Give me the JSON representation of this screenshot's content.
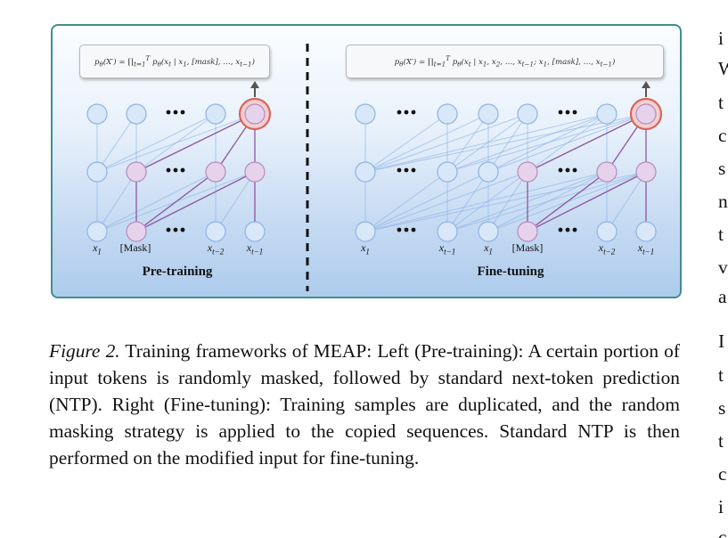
{
  "figure": {
    "left_formula": "pθ(X′) = ∏ t=1..T pθ(xt | x1, [mask], …, xt−1)",
    "right_formula": "pθ(X′) = ∏ t=1..T pθ(xt | x1, x2, …, xt−1; x1, [mask], …, xt−1)",
    "left_title": "Pre-training",
    "right_title": "Fine-tuning",
    "left_labels": [
      "x1",
      "[Mask]",
      "xt−2",
      "xt−1"
    ],
    "right_labels": [
      "x1",
      "xt−1",
      "x1",
      "[Mask]",
      "xt−2",
      "xt−1"
    ],
    "colors": {
      "blue_node": "#d8e8f8",
      "pink_node": "#e6d2ea",
      "blue_line": "#8fb3e6",
      "purple_line": "#8a4a95",
      "highlight_ring": "#d9645a",
      "border": "#3f8f8f"
    }
  },
  "caption": {
    "label": "Figure 2.",
    "text": " Training frameworks of MEAP: Left (Pre-training): A certain portion of input tokens is randomly masked, followed by standard next-token prediction (NTP). Right (Fine-tuning): Training samples are duplicated, and the random masking strategy is applied to the copied sequences. Standard NTP is then performed on the modified input for fine-tuning."
  },
  "right_column_letters": [
    "i",
    "W",
    "t",
    "c",
    "s",
    "n",
    "t",
    "v",
    "a",
    "I",
    "t",
    "s",
    "t",
    "c",
    "i",
    "c"
  ]
}
